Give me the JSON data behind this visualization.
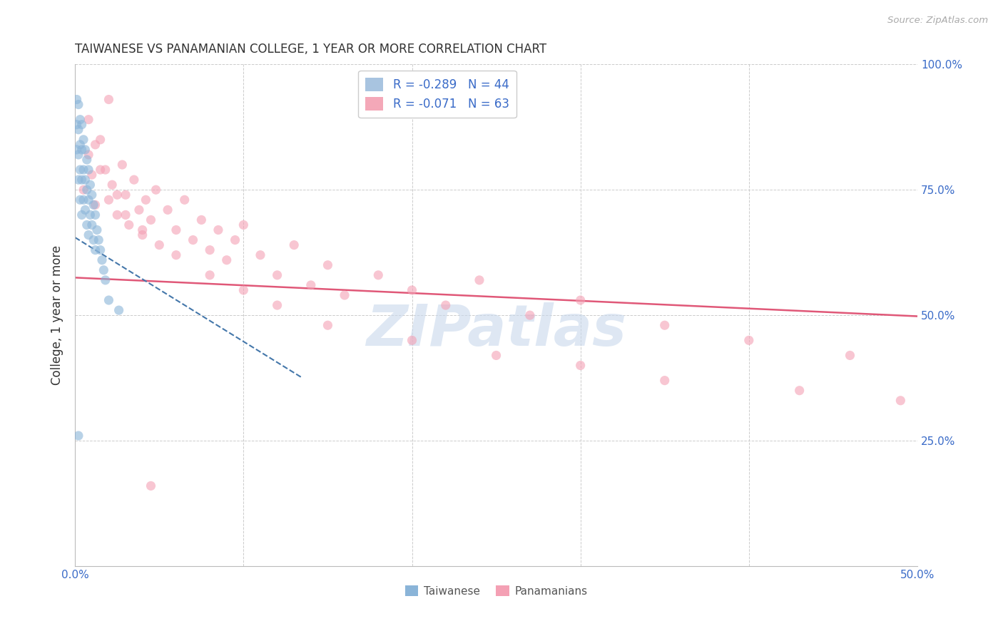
{
  "title": "TAIWANESE VS PANAMANIAN COLLEGE, 1 YEAR OR MORE CORRELATION CHART",
  "source": "Source: ZipAtlas.com",
  "ylabel": "College, 1 year or more",
  "xlim": [
    0.0,
    0.5
  ],
  "ylim": [
    0.0,
    1.0
  ],
  "tw_scatter_x": [
    0.001,
    0.001,
    0.001,
    0.002,
    0.002,
    0.002,
    0.002,
    0.003,
    0.003,
    0.003,
    0.003,
    0.004,
    0.004,
    0.004,
    0.004,
    0.005,
    0.005,
    0.005,
    0.006,
    0.006,
    0.006,
    0.007,
    0.007,
    0.007,
    0.008,
    0.008,
    0.008,
    0.009,
    0.009,
    0.01,
    0.01,
    0.011,
    0.011,
    0.012,
    0.012,
    0.013,
    0.014,
    0.015,
    0.016,
    0.017,
    0.018,
    0.02,
    0.002,
    0.026
  ],
  "tw_scatter_y": [
    0.93,
    0.88,
    0.83,
    0.92,
    0.87,
    0.82,
    0.77,
    0.89,
    0.84,
    0.79,
    0.73,
    0.88,
    0.83,
    0.77,
    0.7,
    0.85,
    0.79,
    0.73,
    0.83,
    0.77,
    0.71,
    0.81,
    0.75,
    0.68,
    0.79,
    0.73,
    0.66,
    0.76,
    0.7,
    0.74,
    0.68,
    0.72,
    0.65,
    0.7,
    0.63,
    0.67,
    0.65,
    0.63,
    0.61,
    0.59,
    0.57,
    0.53,
    0.26,
    0.51
  ],
  "pan_scatter_x": [
    0.005,
    0.008,
    0.01,
    0.012,
    0.015,
    0.018,
    0.02,
    0.022,
    0.025,
    0.028,
    0.03,
    0.032,
    0.035,
    0.038,
    0.04,
    0.042,
    0.045,
    0.048,
    0.05,
    0.055,
    0.06,
    0.065,
    0.07,
    0.075,
    0.08,
    0.085,
    0.09,
    0.095,
    0.1,
    0.11,
    0.12,
    0.13,
    0.14,
    0.15,
    0.16,
    0.18,
    0.2,
    0.22,
    0.24,
    0.27,
    0.3,
    0.35,
    0.4,
    0.46,
    0.008,
    0.012,
    0.015,
    0.02,
    0.025,
    0.03,
    0.04,
    0.06,
    0.08,
    0.1,
    0.12,
    0.15,
    0.2,
    0.25,
    0.3,
    0.35,
    0.43,
    0.49,
    0.045
  ],
  "pan_scatter_y": [
    0.75,
    0.82,
    0.78,
    0.72,
    0.85,
    0.79,
    0.73,
    0.76,
    0.7,
    0.8,
    0.74,
    0.68,
    0.77,
    0.71,
    0.67,
    0.73,
    0.69,
    0.75,
    0.64,
    0.71,
    0.67,
    0.73,
    0.65,
    0.69,
    0.63,
    0.67,
    0.61,
    0.65,
    0.68,
    0.62,
    0.58,
    0.64,
    0.56,
    0.6,
    0.54,
    0.58,
    0.55,
    0.52,
    0.57,
    0.5,
    0.53,
    0.48,
    0.45,
    0.42,
    0.89,
    0.84,
    0.79,
    0.93,
    0.74,
    0.7,
    0.66,
    0.62,
    0.58,
    0.55,
    0.52,
    0.48,
    0.45,
    0.42,
    0.4,
    0.37,
    0.35,
    0.33,
    0.16
  ],
  "tw_line_x": [
    0.0,
    0.135
  ],
  "tw_line_y": [
    0.655,
    0.375
  ],
  "pan_line_x": [
    0.0,
    0.5
  ],
  "pan_line_y": [
    0.575,
    0.498
  ],
  "scatter_alpha": 0.6,
  "scatter_size": 90,
  "tw_color": "#8ab4d8",
  "pan_color": "#f4a0b4",
  "tw_line_color": "#4477aa",
  "pan_line_color": "#e05878",
  "watermark": "ZIPatlas",
  "watermark_color": "#c8d8ec",
  "background_color": "#ffffff",
  "grid_color": "#cccccc"
}
